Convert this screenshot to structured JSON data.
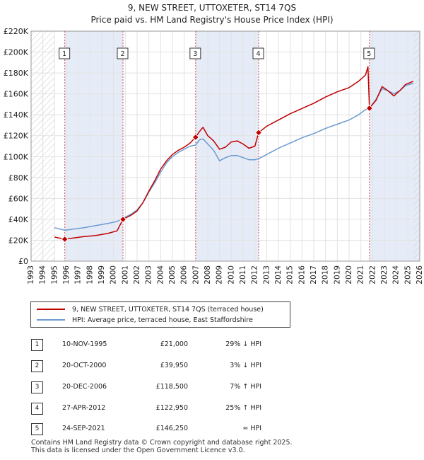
{
  "title": "9, NEW STREET, UTTOXETER, ST14 7QS",
  "subtitle": "Price paid vs. HM Land Registry's House Price Index (HPI)",
  "chart_data": {
    "type": "line",
    "ylim": [
      0,
      220000
    ],
    "xlim": [
      1993,
      2026
    ],
    "y_ticks": [
      0,
      20000,
      40000,
      60000,
      80000,
      100000,
      120000,
      140000,
      160000,
      180000,
      200000,
      220000
    ],
    "y_tick_labels": [
      "£0",
      "£20K",
      "£40K",
      "£60K",
      "£80K",
      "£100K",
      "£120K",
      "£140K",
      "£160K",
      "£180K",
      "£200K",
      "£220K"
    ],
    "x_ticks": [
      1993,
      1994,
      1995,
      1996,
      1997,
      1998,
      1999,
      2000,
      2001,
      2002,
      2003,
      2004,
      2005,
      2006,
      2007,
      2008,
      2009,
      2010,
      2011,
      2012,
      2013,
      2014,
      2015,
      2016,
      2017,
      2018,
      2019,
      2020,
      2021,
      2022,
      2023,
      2024,
      2025,
      2026
    ],
    "hatch_ranges": [
      [
        1993,
        1995.0
      ],
      [
        2025.45,
        2026
      ]
    ],
    "shaded_ranges": [
      [
        1995.86,
        2000.8
      ],
      [
        2006.97,
        2012.32
      ],
      [
        2021.73,
        2026
      ]
    ],
    "series": [
      {
        "name": "9, NEW STREET, UTTOXETER, ST14 7QS (terraced house)",
        "color": "#c00000",
        "points": [
          [
            1995.0,
            23000
          ],
          [
            1995.86,
            21000
          ],
          [
            1996.5,
            22000
          ],
          [
            1997.5,
            23500
          ],
          [
            1998.5,
            24500
          ],
          [
            1999.5,
            26500
          ],
          [
            2000.3,
            29000
          ],
          [
            2000.8,
            39950
          ],
          [
            2001.5,
            44000
          ],
          [
            2002.0,
            48000
          ],
          [
            2002.5,
            56000
          ],
          [
            2003.0,
            67000
          ],
          [
            2003.5,
            77000
          ],
          [
            2004.0,
            88000
          ],
          [
            2004.5,
            96000
          ],
          [
            2005.0,
            102000
          ],
          [
            2005.5,
            106000
          ],
          [
            2006.0,
            109000
          ],
          [
            2006.5,
            113000
          ],
          [
            2006.97,
            118500
          ],
          [
            2007.3,
            124000
          ],
          [
            2007.6,
            128000
          ],
          [
            2008.0,
            120000
          ],
          [
            2008.5,
            115000
          ],
          [
            2009.0,
            107000
          ],
          [
            2009.5,
            109000
          ],
          [
            2010.0,
            114000
          ],
          [
            2010.5,
            115000
          ],
          [
            2011.0,
            112000
          ],
          [
            2011.5,
            108000
          ],
          [
            2012.0,
            110000
          ],
          [
            2012.32,
            122950
          ],
          [
            2013.0,
            129000
          ],
          [
            2014.0,
            135000
          ],
          [
            2015.0,
            141000
          ],
          [
            2016.0,
            146000
          ],
          [
            2017.0,
            151000
          ],
          [
            2018.0,
            157000
          ],
          [
            2019.0,
            162000
          ],
          [
            2020.0,
            166000
          ],
          [
            2020.8,
            172000
          ],
          [
            2021.4,
            178000
          ],
          [
            2021.6,
            186000
          ],
          [
            2021.73,
            146250
          ],
          [
            2022.3,
            154000
          ],
          [
            2022.8,
            167000
          ],
          [
            2023.3,
            163000
          ],
          [
            2023.8,
            158000
          ],
          [
            2024.3,
            163000
          ],
          [
            2024.8,
            169000
          ],
          [
            2025.45,
            172000
          ]
        ]
      },
      {
        "name": "HPI: Average price, terraced house, East Staffordshire",
        "color": "#6a9bd1",
        "points": [
          [
            1995.0,
            32000
          ],
          [
            1995.86,
            29500
          ],
          [
            1996.5,
            30500
          ],
          [
            1997.5,
            32000
          ],
          [
            1998.5,
            34000
          ],
          [
            1999.5,
            36000
          ],
          [
            2000.3,
            38000
          ],
          [
            2000.8,
            41000
          ],
          [
            2001.5,
            45000
          ],
          [
            2002.0,
            49000
          ],
          [
            2002.5,
            56000
          ],
          [
            2003.0,
            66000
          ],
          [
            2003.5,
            75000
          ],
          [
            2004.0,
            85000
          ],
          [
            2004.5,
            94000
          ],
          [
            2005.0,
            100000
          ],
          [
            2005.5,
            104000
          ],
          [
            2006.0,
            107000
          ],
          [
            2006.5,
            110000
          ],
          [
            2006.97,
            111000
          ],
          [
            2007.3,
            116000
          ],
          [
            2007.6,
            117000
          ],
          [
            2008.0,
            112000
          ],
          [
            2008.5,
            106000
          ],
          [
            2009.0,
            96000
          ],
          [
            2009.5,
            99000
          ],
          [
            2010.0,
            101000
          ],
          [
            2010.5,
            101000
          ],
          [
            2011.0,
            99000
          ],
          [
            2011.5,
            97000
          ],
          [
            2012.0,
            97000
          ],
          [
            2012.32,
            98000
          ],
          [
            2013.0,
            102000
          ],
          [
            2014.0,
            108000
          ],
          [
            2015.0,
            113000
          ],
          [
            2016.0,
            118000
          ],
          [
            2017.0,
            122000
          ],
          [
            2018.0,
            127000
          ],
          [
            2019.0,
            131000
          ],
          [
            2020.0,
            135000
          ],
          [
            2020.8,
            140000
          ],
          [
            2021.4,
            145000
          ],
          [
            2021.73,
            146000
          ],
          [
            2022.3,
            155000
          ],
          [
            2022.8,
            165000
          ],
          [
            2023.3,
            163000
          ],
          [
            2023.8,
            160000
          ],
          [
            2024.3,
            163000
          ],
          [
            2024.8,
            168000
          ],
          [
            2025.45,
            170000
          ]
        ]
      }
    ],
    "sales": [
      {
        "label": "1",
        "x": 1995.86,
        "y": 21000
      },
      {
        "label": "2",
        "x": 2000.8,
        "y": 39950
      },
      {
        "label": "3",
        "x": 2006.97,
        "y": 118500
      },
      {
        "label": "4",
        "x": 2012.32,
        "y": 122950
      },
      {
        "label": "5",
        "x": 2021.73,
        "y": 146250
      }
    ]
  },
  "legend": {
    "property_label": "9, NEW STREET, UTTOXETER, ST14 7QS (terraced house)",
    "hpi_label": "HPI: Average price, terraced house, East Staffordshire",
    "property_color": "#c00000",
    "hpi_color": "#6a9bd1"
  },
  "transactions": [
    {
      "num": "1",
      "date": "10-NOV-1995",
      "price": "£21,000",
      "hpi": "29% ↓ HPI"
    },
    {
      "num": "2",
      "date": "20-OCT-2000",
      "price": "£39,950",
      "hpi": "3% ↓ HPI"
    },
    {
      "num": "3",
      "date": "20-DEC-2006",
      "price": "£118,500",
      "hpi": "7% ↑ HPI"
    },
    {
      "num": "4",
      "date": "27-APR-2012",
      "price": "£122,950",
      "hpi": "25% ↑ HPI"
    },
    {
      "num": "5",
      "date": "24-SEP-2021",
      "price": "£146,250",
      "hpi": "≈ HPI"
    }
  ],
  "footer": {
    "line1": "Contains HM Land Registry data © Crown copyright and database right 2025.",
    "line2": "This data is licensed under the Open Government Licence v3.0."
  }
}
